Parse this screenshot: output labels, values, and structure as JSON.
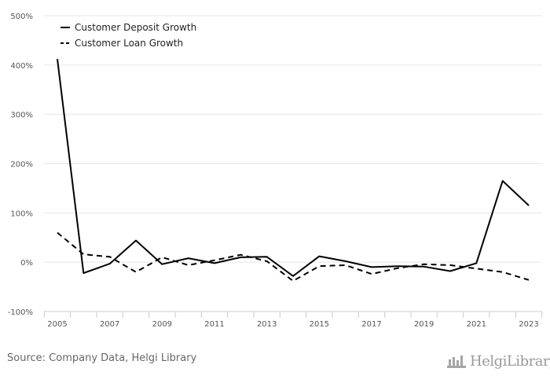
{
  "chart_data": {
    "type": "line",
    "x": [
      "2005",
      "2006",
      "2007",
      "2008",
      "2009",
      "2010",
      "2011",
      "2012",
      "2013",
      "2014",
      "2015",
      "2016",
      "2017",
      "2018",
      "2019",
      "2020",
      "2021",
      "2022",
      "2023"
    ],
    "xticks": [
      "2005",
      "2007",
      "2009",
      "2011",
      "2013",
      "2015",
      "2017",
      "2019",
      "2021",
      "2023"
    ],
    "yticks": [
      "500%",
      "400%",
      "300%",
      "200%",
      "100%",
      "0%",
      "-100%"
    ],
    "ylim": [
      -100,
      500
    ],
    "series": [
      {
        "name": "Customer Deposit Growth",
        "style": "solid",
        "color": "#000000",
        "values": [
          412,
          -22,
          -3,
          44,
          -4,
          8,
          -2,
          10,
          11,
          -28,
          12,
          2,
          -10,
          -8,
          -9,
          -18,
          -2,
          165,
          115
        ]
      },
      {
        "name": "Customer Loan Growth",
        "style": "dashed",
        "color": "#000000",
        "values": [
          60,
          16,
          11,
          -20,
          10,
          -6,
          4,
          15,
          2,
          -38,
          -8,
          -6,
          -24,
          -12,
          -4,
          -6,
          -13,
          -20,
          -36
        ]
      }
    ],
    "grid": true,
    "legend": "top-left"
  },
  "source": "Source: Company Data, Helgi Library",
  "logo": "HelgiLibrary"
}
